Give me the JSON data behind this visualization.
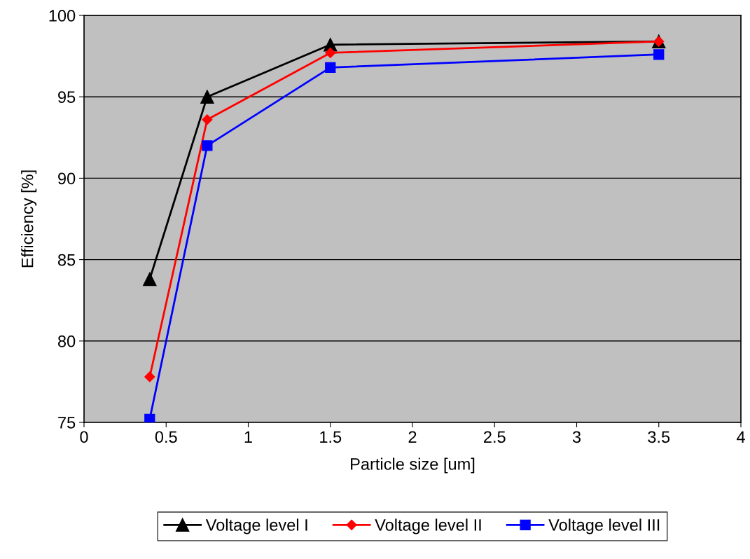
{
  "chart_data": {
    "type": "line",
    "xlabel": "Particle size [um]",
    "ylabel": "Efficiency [%]",
    "x": [
      0.4,
      0.75,
      1.5,
      3.5
    ],
    "series": [
      {
        "name": "Voltage level I",
        "color": "#000000",
        "marker": "triangle",
        "values": [
          83.8,
          95.0,
          98.2,
          98.4
        ]
      },
      {
        "name": "Voltage level II",
        "color": "#ff0000",
        "marker": "diamond",
        "values": [
          77.8,
          93.6,
          97.7,
          98.4
        ]
      },
      {
        "name": "Voltage level III",
        "color": "#0000ff",
        "marker": "square",
        "values": [
          75.2,
          92.0,
          96.8,
          97.6
        ]
      }
    ],
    "xlim": [
      0,
      4
    ],
    "xticks": [
      0,
      0.5,
      1,
      1.5,
      2,
      2.5,
      3,
      3.5,
      4
    ],
    "ylim": [
      75,
      100
    ],
    "yticks": [
      75,
      80,
      85,
      90,
      95,
      100
    ],
    "grid": "y",
    "legend": "bottom",
    "line_style": "solid"
  }
}
